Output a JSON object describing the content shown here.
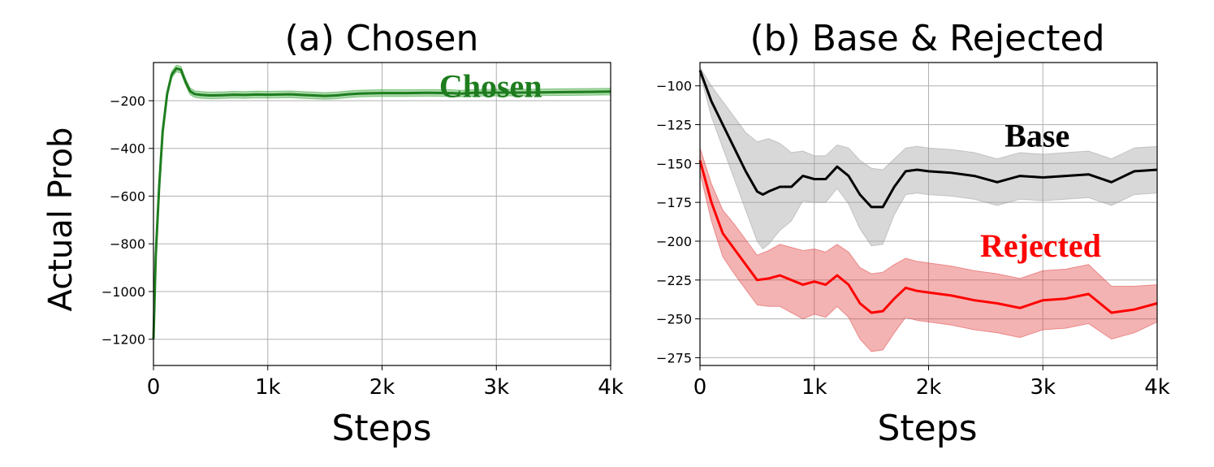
{
  "chart_data": [
    {
      "type": "line",
      "title": "(a) Chosen",
      "xlabel": "Steps",
      "ylabel": "Actual Prob",
      "xlim": [
        0,
        4000
      ],
      "ylim": [
        -1310,
        -40
      ],
      "xticks": [
        0,
        1000,
        2000,
        3000,
        4000
      ],
      "xtick_labels": [
        "0",
        "1k",
        "2k",
        "3k",
        "4k"
      ],
      "yticks": [
        -200,
        -400,
        -600,
        -800,
        -1000,
        -1200
      ],
      "ytick_labels": [
        "−200",
        "−400",
        "−600",
        "−800",
        "−1000",
        "−1200"
      ],
      "grid": true,
      "series": [
        {
          "name": "Chosen",
          "color": "#1e7d1e",
          "band_color": "#2ca02c",
          "x": [
            0,
            20,
            50,
            80,
            120,
            160,
            200,
            240,
            280,
            320,
            360,
            420,
            500,
            600,
            700,
            800,
            900,
            1000,
            1100,
            1200,
            1300,
            1400,
            1500,
            1600,
            1700,
            1800,
            1900,
            2000,
            2200,
            2400,
            2600,
            2700,
            2800,
            3000,
            3200,
            3400,
            3600,
            3800,
            4000
          ],
          "values": [
            -1200,
            -850,
            -560,
            -330,
            -170,
            -90,
            -65,
            -70,
            -120,
            -160,
            -172,
            -176,
            -178,
            -177,
            -175,
            -176,
            -174,
            -175,
            -174,
            -173,
            -176,
            -178,
            -180,
            -178,
            -173,
            -170,
            -169,
            -168,
            -168,
            -167,
            -168,
            -170,
            -167,
            -166,
            -166,
            -165,
            -164,
            -163,
            -162
          ],
          "band": [
            0,
            8,
            12,
            15,
            15,
            14,
            14,
            14,
            14,
            14,
            14,
            14,
            14,
            14,
            14,
            14,
            14,
            14,
            14,
            14,
            14,
            14,
            14,
            14,
            14,
            14,
            14,
            14,
            14,
            14,
            14,
            14,
            14,
            14,
            14,
            14,
            14,
            14,
            14
          ]
        }
      ],
      "annotations": [
        {
          "text": "Chosen",
          "color": "#1e7d1e",
          "x": 2950,
          "y": -185
        }
      ]
    },
    {
      "type": "line",
      "title": "(b) Base & Rejected",
      "xlabel": "Steps",
      "xlim": [
        0,
        4000
      ],
      "ylim": [
        -280,
        -85
      ],
      "xticks": [
        0,
        1000,
        2000,
        3000,
        4000
      ],
      "xtick_labels": [
        "0",
        "1k",
        "2k",
        "3k",
        "4k"
      ],
      "yticks": [
        -100,
        -125,
        -150,
        -175,
        -200,
        -225,
        -250,
        -275
      ],
      "ytick_labels": [
        "−100",
        "−125",
        "−150",
        "−175",
        "−200",
        "−225",
        "−250",
        "−275"
      ],
      "grid": true,
      "series": [
        {
          "name": "Base",
          "color": "#000000",
          "band_color": "#9e9e9e",
          "x": [
            0,
            100,
            200,
            300,
            400,
            500,
            550,
            600,
            700,
            800,
            900,
            1000,
            1100,
            1200,
            1300,
            1400,
            1500,
            1600,
            1700,
            1800,
            1900,
            2000,
            2200,
            2400,
            2600,
            2800,
            3000,
            3200,
            3400,
            3600,
            3800,
            4000
          ],
          "values": [
            -90,
            -110,
            -125,
            -140,
            -155,
            -168,
            -170,
            -168,
            -165,
            -165,
            -158,
            -160,
            -160,
            -152,
            -158,
            -170,
            -178,
            -178,
            -165,
            -155,
            -154,
            -155,
            -156,
            -158,
            -162,
            -158,
            -159,
            -158,
            -157,
            -162,
            -155,
            -154
          ],
          "band": [
            2,
            10,
            15,
            20,
            25,
            32,
            35,
            34,
            28,
            22,
            16,
            15,
            15,
            14,
            18,
            22,
            25,
            24,
            18,
            15,
            15,
            15,
            15,
            15,
            15,
            15,
            15,
            15,
            15,
            15,
            15,
            15
          ]
        },
        {
          "name": "Rejected",
          "color": "#ff0000",
          "band_color": "#e04040",
          "x": [
            0,
            100,
            200,
            300,
            400,
            500,
            600,
            700,
            800,
            900,
            1000,
            1100,
            1200,
            1300,
            1400,
            1500,
            1600,
            1700,
            1800,
            1900,
            2000,
            2200,
            2400,
            2600,
            2800,
            3000,
            3200,
            3400,
            3600,
            3800,
            4000
          ],
          "values": [
            -148,
            -175,
            -195,
            -205,
            -215,
            -225,
            -224,
            -222,
            -225,
            -228,
            -226,
            -228,
            -222,
            -228,
            -240,
            -246,
            -245,
            -237,
            -230,
            -232,
            -233,
            -235,
            -238,
            -240,
            -243,
            -238,
            -237,
            -234,
            -246,
            -244,
            -240
          ],
          "band": [
            8,
            12,
            15,
            16,
            16,
            16,
            18,
            20,
            21,
            22,
            21,
            21,
            20,
            21,
            23,
            25,
            25,
            22,
            19,
            19,
            19,
            19,
            19,
            19,
            19,
            19,
            19,
            19,
            17,
            15,
            12
          ]
        }
      ],
      "annotations": [
        {
          "text": "Base",
          "color": "#000000",
          "x": 2950,
          "y": -139
        },
        {
          "text": "Rejected",
          "color": "#ff0000",
          "x": 2980,
          "y": -210
        }
      ]
    }
  ]
}
